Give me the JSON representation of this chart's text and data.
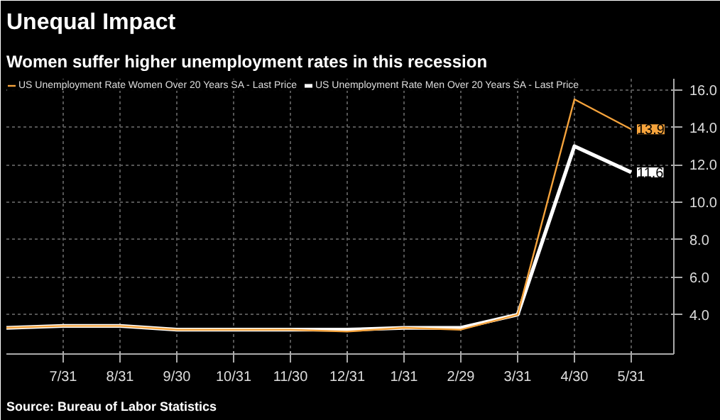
{
  "chart_data": {
    "type": "line",
    "title": "Unequal Impact",
    "subtitle": "Women suffer higher unemployment rates in this recession",
    "categories": [
      null,
      "7/31",
      "8/31",
      "9/30",
      "10/31",
      "11/30",
      "12/31",
      "1/31",
      "2/29",
      "3/31",
      "4/30",
      "5/31"
    ],
    "series": [
      {
        "name": "US Unemployment Rate Women Over 20 Years SA - Last Price",
        "color": "#f5a33c",
        "values": [
          3.3,
          3.4,
          3.4,
          3.2,
          3.2,
          3.2,
          3.1,
          3.3,
          3.2,
          4.0,
          15.5,
          13.9
        ],
        "value_labels": [
          null,
          null,
          null,
          null,
          null,
          null,
          null,
          null,
          null,
          null,
          null,
          "13.9"
        ]
      },
      {
        "name": "US Unemployment Rate Men Over 20 Years SA - Last Price",
        "color": "#ffffff",
        "values": [
          3.3,
          3.4,
          3.4,
          3.2,
          3.2,
          3.2,
          3.2,
          3.3,
          3.3,
          4.0,
          13.0,
          11.6
        ],
        "value_labels": [
          null,
          null,
          null,
          null,
          null,
          null,
          null,
          null,
          null,
          null,
          null,
          "11.6"
        ]
      }
    ],
    "ylim": [
      1.9,
      16.6
    ],
    "yticks": [
      {
        "value": 4,
        "label": "4.0"
      },
      {
        "value": 6,
        "label": "6.0"
      },
      {
        "value": 8,
        "label": "8.0"
      },
      {
        "value": 10,
        "label": "10.0"
      },
      {
        "value": 12,
        "label": "12.0"
      },
      {
        "value": 14,
        "label": "14.0"
      },
      {
        "value": 16,
        "label": "16.0"
      }
    ],
    "grid": true,
    "legend": "top left",
    "line_style": "solid",
    "annotations": [
      "Source: Bureau of Labor Statistics"
    ]
  }
}
